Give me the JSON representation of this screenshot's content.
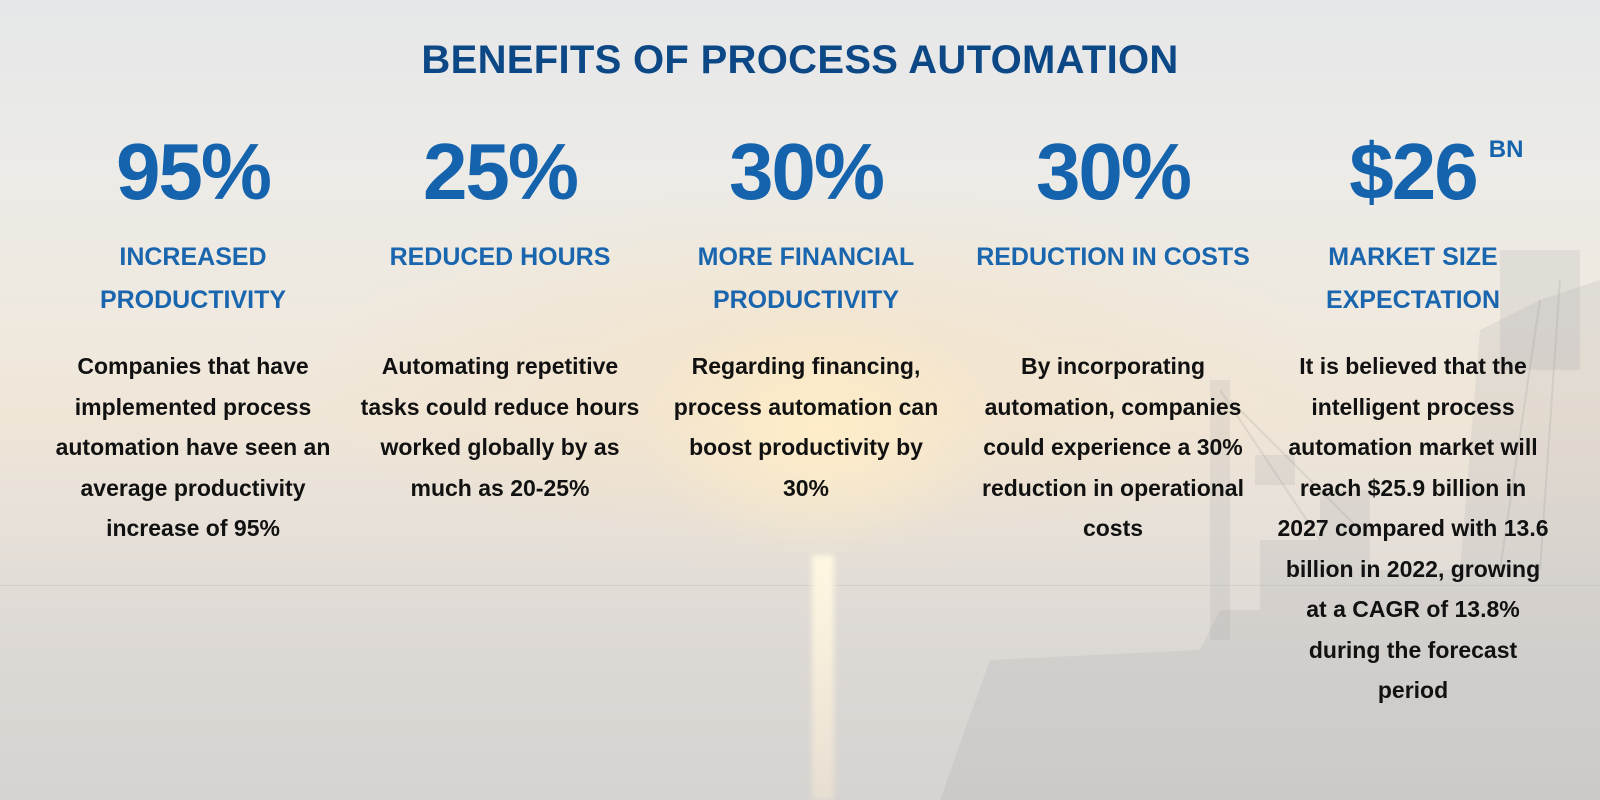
{
  "title": "BENEFITS OF PROCESS AUTOMATION",
  "benefits": [
    {
      "stat": "95%",
      "heading": "INCREASED PRODUCTIVITY",
      "text": "Companies that have implemented process automation have seen an average productivity increase of 95%"
    },
    {
      "stat": "25%",
      "heading": "REDUCED HOURS",
      "text": "Automating repetitive tasks could reduce hours worked globally by as much as 20-25%"
    },
    {
      "stat": "30%",
      "heading": "MORE FINANCIAL PRODUCTIVITY",
      "text": "Regarding financing, process automation can boost productivity by 30%"
    },
    {
      "stat": "30%",
      "heading": "REDUCTION IN COSTS",
      "text": "By incorporating automation, companies could experience a 30% reduction in operational costs"
    },
    {
      "stat": "$26",
      "stat_suffix": "BN",
      "heading": "MARKET SIZE EXPECTATION",
      "text": "It is believed that the intelligent process automation market will reach $25.9 billion in 2027 compared with 13.6 billion in 2022, growing at a CAGR of 13.8% during the forecast period"
    }
  ],
  "colors": {
    "title": "#0d4886",
    "accent": "#1563ad",
    "body_text": "#111111"
  }
}
